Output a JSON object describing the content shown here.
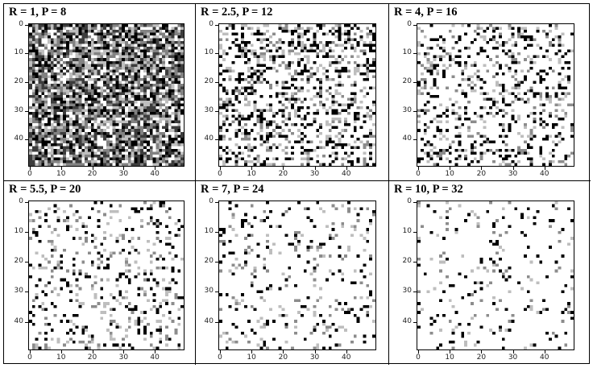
{
  "panels": [
    {
      "title": "R = 1, P = 8",
      "density": 0.5,
      "smooth": 0
    },
    {
      "title": "R = 2.5, P = 12",
      "density": 0.38,
      "smooth": 1
    },
    {
      "title": "R = 4, P = 16",
      "density": 0.26,
      "smooth": 2
    },
    {
      "title": "R = 5.5, P = 20",
      "density": 0.2,
      "smooth": 2
    },
    {
      "title": "R = 7, P = 24",
      "density": 0.14,
      "smooth": 3
    },
    {
      "title": "R = 10, P = 32",
      "density": 0.1,
      "smooth": 3
    }
  ],
  "axis": {
    "x_ticks": [
      "0",
      "10",
      "20",
      "30",
      "40"
    ],
    "y_ticks": [
      "0",
      "10",
      "20",
      "30",
      "40"
    ],
    "size": 50
  }
}
